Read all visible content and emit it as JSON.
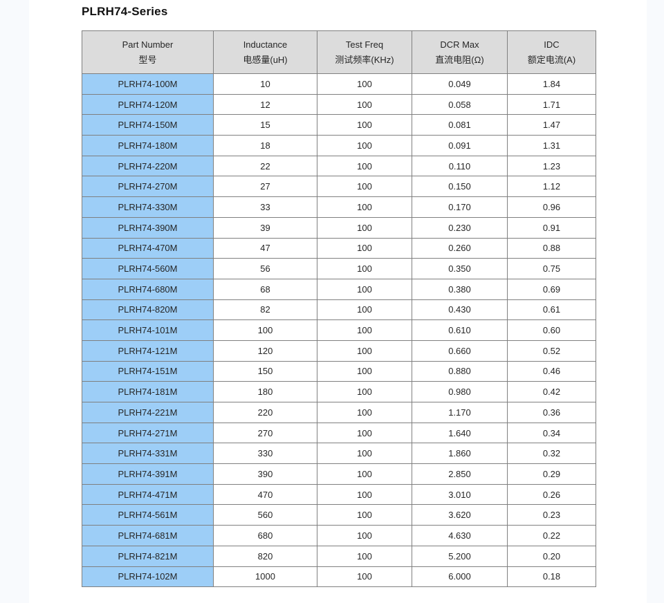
{
  "page": {
    "title": "PLRH74-Series"
  },
  "colors": {
    "part_column_bg": "#9dcef7",
    "header_bg": "#dcdcdc",
    "border": "#7f7f7f",
    "outer_border": "#595959",
    "side_strip": "#f8fafd",
    "text": "#262626"
  },
  "table": {
    "columns": [
      {
        "en": "Part Number",
        "zh": "型号"
      },
      {
        "en": "Inductance",
        "zh": "电感量(uH)"
      },
      {
        "en": "Test Freq",
        "zh": "测试频率(KHz)"
      },
      {
        "en": "DCR Max",
        "zh": "直流电阻(Ω)"
      },
      {
        "en": "IDC",
        "zh": "额定电流(A)"
      }
    ],
    "rows": [
      [
        "PLRH74-100M",
        "10",
        "100",
        "0.049",
        "1.84"
      ],
      [
        "PLRH74-120M",
        "12",
        "100",
        "0.058",
        "1.71"
      ],
      [
        "PLRH74-150M",
        "15",
        "100",
        "0.081",
        "1.47"
      ],
      [
        "PLRH74-180M",
        "18",
        "100",
        "0.091",
        "1.31"
      ],
      [
        "PLRH74-220M",
        "22",
        "100",
        "0.110",
        "1.23"
      ],
      [
        "PLRH74-270M",
        "27",
        "100",
        "0.150",
        "1.12"
      ],
      [
        "PLRH74-330M",
        "33",
        "100",
        "0.170",
        "0.96"
      ],
      [
        "PLRH74-390M",
        "39",
        "100",
        "0.230",
        "0.91"
      ],
      [
        "PLRH74-470M",
        "47",
        "100",
        "0.260",
        "0.88"
      ],
      [
        "PLRH74-560M",
        "56",
        "100",
        "0.350",
        "0.75"
      ],
      [
        "PLRH74-680M",
        "68",
        "100",
        "0.380",
        "0.69"
      ],
      [
        "PLRH74-820M",
        "82",
        "100",
        "0.430",
        "0.61"
      ],
      [
        "PLRH74-101M",
        "100",
        "100",
        "0.610",
        "0.60"
      ],
      [
        "PLRH74-121M",
        "120",
        "100",
        "0.660",
        "0.52"
      ],
      [
        "PLRH74-151M",
        "150",
        "100",
        "0.880",
        "0.46"
      ],
      [
        "PLRH74-181M",
        "180",
        "100",
        "0.980",
        "0.42"
      ],
      [
        "PLRH74-221M",
        "220",
        "100",
        "1.170",
        "0.36"
      ],
      [
        "PLRH74-271M",
        "270",
        "100",
        "1.640",
        "0.34"
      ],
      [
        "PLRH74-331M",
        "330",
        "100",
        "1.860",
        "0.32"
      ],
      [
        "PLRH74-391M",
        "390",
        "100",
        "2.850",
        "0.29"
      ],
      [
        "PLRH74-471M",
        "470",
        "100",
        "3.010",
        "0.26"
      ],
      [
        "PLRH74-561M",
        "560",
        "100",
        "3.620",
        "0.23"
      ],
      [
        "PLRH74-681M",
        "680",
        "100",
        "4.630",
        "0.22"
      ],
      [
        "PLRH74-821M",
        "820",
        "100",
        "5.200",
        "0.20"
      ],
      [
        "PLRH74-102M",
        "1000",
        "100",
        "6.000",
        "0.18"
      ]
    ],
    "column_keys": [
      "part-number",
      "inductance",
      "test-freq",
      "dcr-max",
      "idc"
    ]
  }
}
